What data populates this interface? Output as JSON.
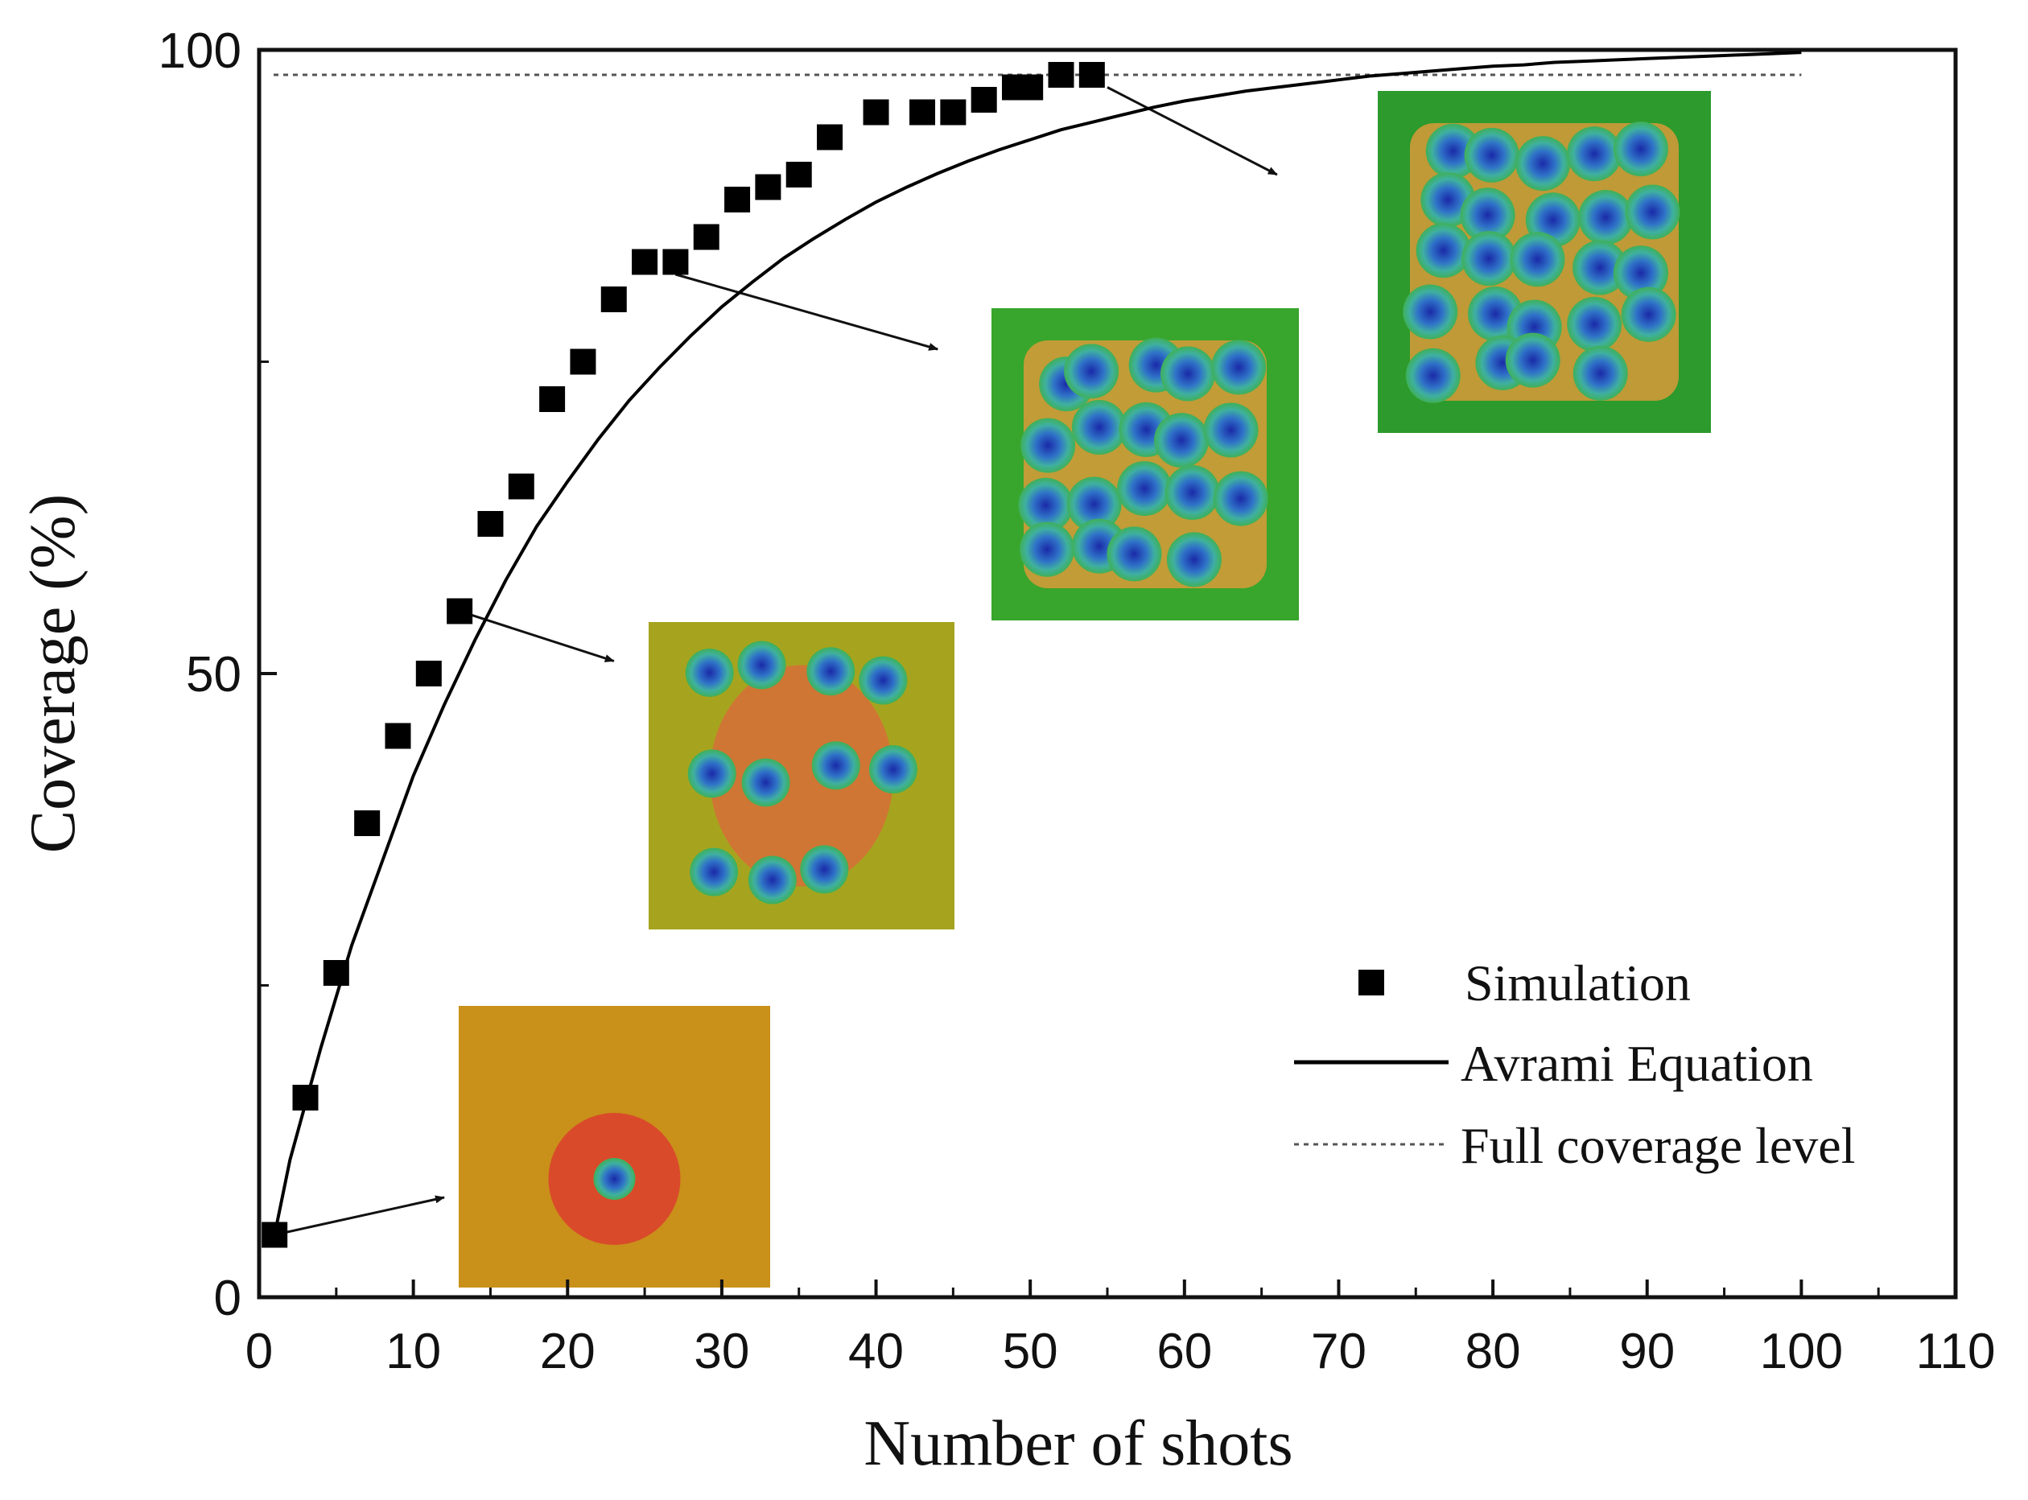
{
  "chart_data": {
    "type": "scatter",
    "title": "",
    "xlabel": "Number of shots",
    "ylabel": "Coverage (%)",
    "xlim": [
      0,
      110
    ],
    "ylim": [
      0,
      100
    ],
    "xticks": [
      0,
      10,
      20,
      30,
      40,
      50,
      60,
      70,
      80,
      90,
      100,
      110
    ],
    "yticks": [
      0,
      50,
      100
    ],
    "grid": false,
    "legend_position": "bottom-right",
    "series": [
      {
        "name": "Simulation",
        "kind": "markers",
        "marker": "square",
        "color": "#000000",
        "x": [
          1,
          3,
          5,
          7,
          9,
          11,
          13,
          15,
          17,
          19,
          21,
          23,
          25,
          27,
          29,
          31,
          33,
          35,
          37,
          40,
          43,
          45,
          47,
          49,
          50,
          52,
          54
        ],
        "y": [
          5,
          16,
          26,
          38,
          45,
          50,
          55,
          62,
          65,
          72,
          75,
          80,
          83,
          83,
          85,
          88,
          89,
          90,
          93,
          95,
          95,
          95,
          96,
          97,
          97,
          98,
          98
        ]
      },
      {
        "name": "Avrami Equation",
        "kind": "line",
        "style": "solid",
        "color": "#000000",
        "x": [
          1,
          2,
          4,
          6,
          8,
          10,
          12,
          14,
          16,
          18,
          20,
          22,
          24,
          26,
          28,
          30,
          32,
          34,
          36,
          38,
          40,
          42,
          44,
          46,
          48,
          50,
          52,
          54,
          56,
          58,
          60,
          62,
          64,
          66,
          68,
          70,
          72,
          74,
          76,
          78,
          80,
          82,
          84,
          86,
          88,
          90,
          92,
          94,
          96,
          98,
          100
        ],
        "y": [
          5.0,
          11.0,
          20.0,
          28.2,
          35.0,
          41.8,
          47.5,
          52.7,
          57.5,
          61.8,
          65.4,
          68.8,
          71.9,
          74.6,
          77.1,
          79.4,
          81.4,
          83.3,
          84.9,
          86.4,
          87.8,
          89.0,
          90.1,
          91.1,
          92.0,
          92.8,
          93.6,
          94.2,
          94.8,
          95.4,
          95.9,
          96.3,
          96.7,
          97.0,
          97.3,
          97.6,
          97.9,
          98.1,
          98.3,
          98.5,
          98.7,
          98.8,
          99.0,
          99.1,
          99.2,
          99.3,
          99.4,
          99.5,
          99.6,
          99.7,
          99.8
        ]
      },
      {
        "name": "Full coverage level",
        "kind": "hline",
        "style": "dotted",
        "color": "#555555",
        "x": [
          0,
          100
        ],
        "y": [
          98,
          98
        ]
      }
    ],
    "annotations": [
      {
        "type": "arrow",
        "from": [
          1,
          5
        ],
        "to": [
          12,
          8
        ]
      },
      {
        "type": "arrow",
        "from": [
          13,
          55
        ],
        "to": [
          23,
          51
        ]
      },
      {
        "type": "arrow",
        "from": [
          27,
          82
        ],
        "to": [
          44,
          76
        ]
      },
      {
        "type": "arrow",
        "from": [
          55,
          97
        ],
        "to": [
          66,
          90
        ]
      }
    ],
    "insets": [
      {
        "name": "inset-1-shot",
        "description": "simulation contour map after 1 shot",
        "background": "#c9901a",
        "impacts": 1
      },
      {
        "name": "inset-13-shots",
        "description": "simulation contour map after about 13 shots",
        "background": "#a6a41e",
        "impacts": 11
      },
      {
        "name": "inset-27-shots",
        "description": "simulation contour map after about 27 shots",
        "background": "#38a52c",
        "impacts": 19
      },
      {
        "name": "inset-54-shots",
        "description": "simulation contour map after about 54 shots",
        "background": "#2c9a2c",
        "impacts": 24
      }
    ]
  }
}
